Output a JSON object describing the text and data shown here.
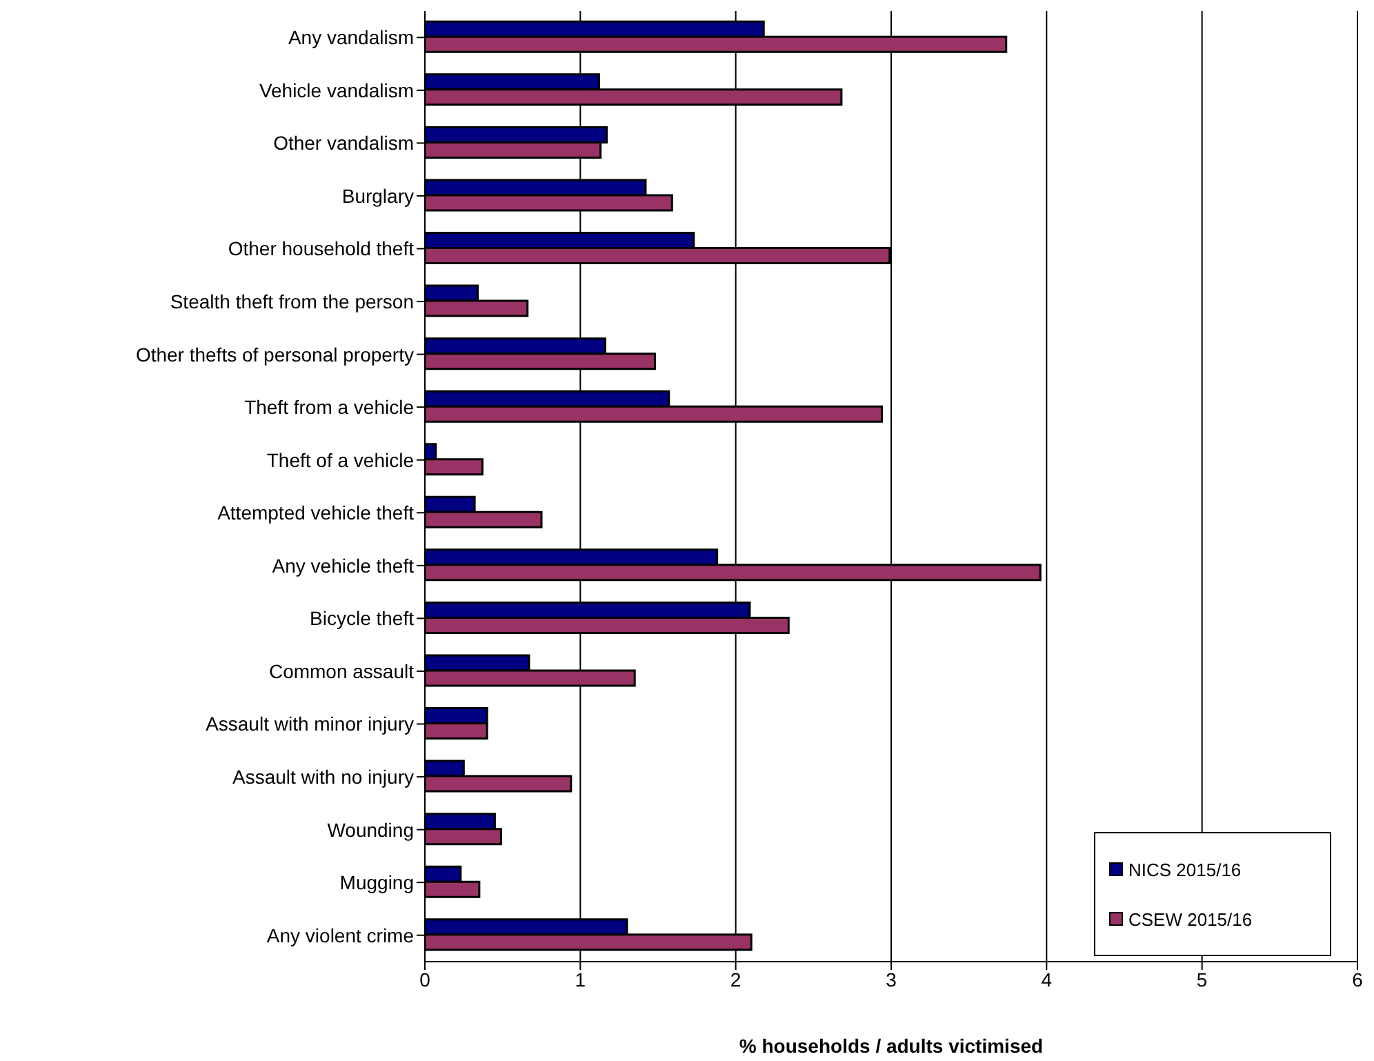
{
  "chart_data": {
    "type": "bar",
    "orientation": "horizontal",
    "xlabel": "% households / adults victimised",
    "categories": [
      "Any vandalism",
      "Vehicle vandalism",
      "Other vandalism",
      "Burglary",
      "Other household theft",
      "Stealth theft from the person",
      "Other thefts of personal property",
      "Theft from a vehicle",
      "Theft of a vehicle",
      "Attempted vehicle theft",
      "Any vehicle theft",
      "Bicycle theft",
      "Common assault",
      "Assault with minor injury",
      "Assault with no injury",
      "Wounding",
      "Mugging",
      "Any violent crime"
    ],
    "series": [
      {
        "name": "NICS 2015/16",
        "color": "#000080",
        "values": [
          2.18,
          1.12,
          1.17,
          1.42,
          1.73,
          0.34,
          1.16,
          1.57,
          0.07,
          0.32,
          1.88,
          2.09,
          0.67,
          0.4,
          0.25,
          0.45,
          0.23,
          1.3
        ]
      },
      {
        "name": "CSEW 2015/16",
        "color": "#993366",
        "values": [
          3.74,
          2.68,
          1.13,
          1.59,
          2.99,
          0.66,
          1.48,
          2.94,
          0.37,
          0.75,
          3.96,
          2.34,
          1.35,
          0.4,
          0.94,
          0.49,
          0.35,
          2.1
        ]
      }
    ],
    "xlim": [
      0,
      6
    ],
    "xticks": [
      0,
      1,
      2,
      3,
      4,
      5,
      6
    ],
    "grid": "x",
    "legend": "bottom right"
  }
}
